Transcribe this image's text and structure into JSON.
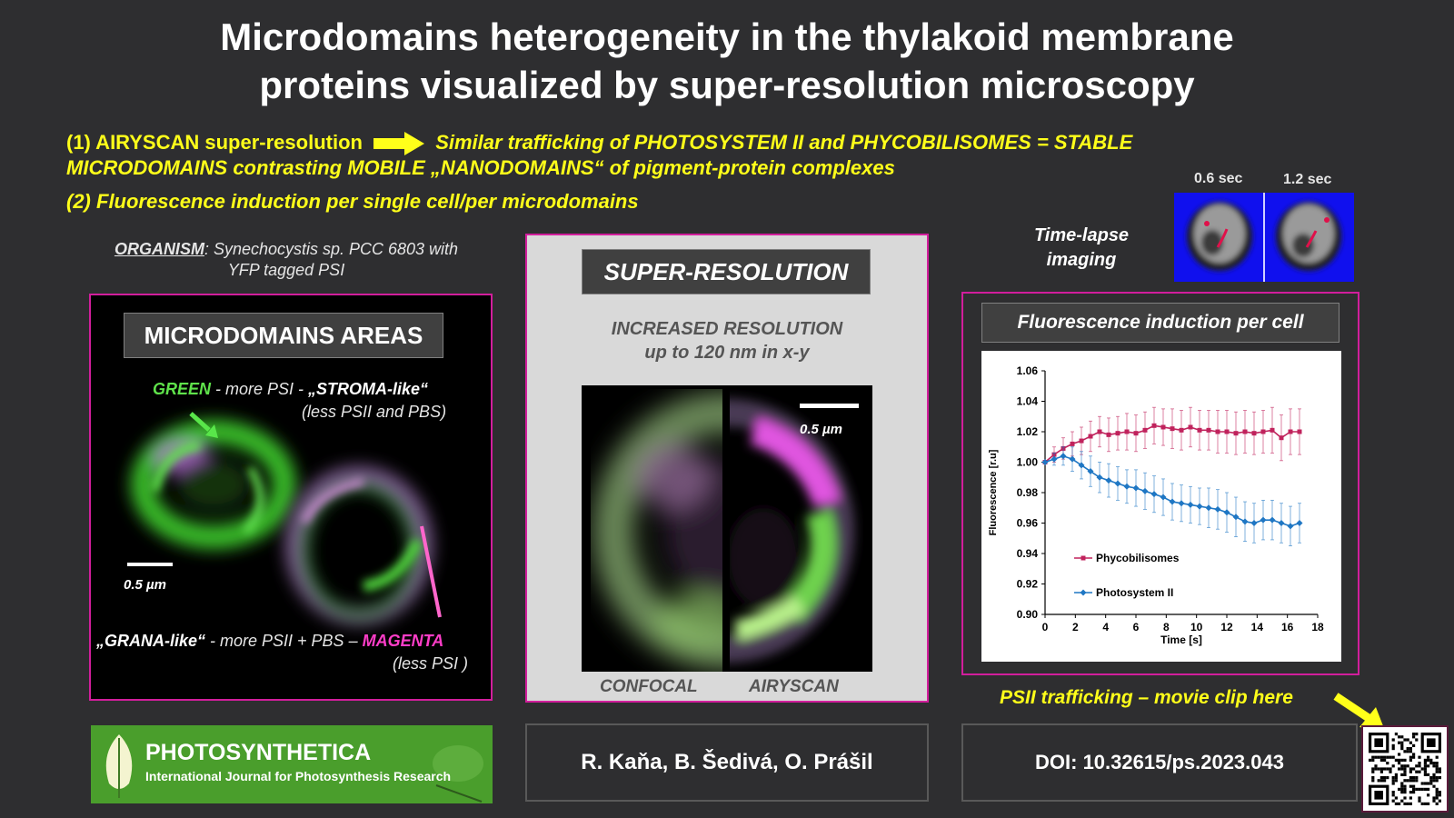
{
  "title": {
    "line1": "Microdomains heterogeneity in the thylakoid membrane",
    "line2": "proteins visualized by super-resolution microscopy"
  },
  "points": {
    "p1_lead": "(1) AIRYSCAN super-resolution",
    "p1_rest": "Similar trafficking of PHOTOSYSTEM II and PHYCOBILISOMES = STABLE",
    "p1_line2": "MICRODOMAINS contrasting MOBILE „NANODOMAINS“ of pigment-protein complexes",
    "p2": "(2) Fluorescence induction per single cell/per microdomains"
  },
  "organism": {
    "label": "ORGANISM",
    "text1": ": Synechocystis sp. PCC 6803 with",
    "text2": "YFP tagged PSI"
  },
  "left_panel": {
    "header": "MICRODOMAINS  AREAS",
    "green_word": "GREEN",
    "green_text": " - more PSI  - ",
    "stroma": "„STROMA-like“",
    "green_sub": "(less PSII and PBS)",
    "scale": "0.5 µm",
    "grana": "„GRANA-like“",
    "grana_text": " - more PSII + PBS – ",
    "magenta_word": "MAGENTA",
    "magenta_sub": "(less PSI )"
  },
  "mid_panel": {
    "header": "SUPER-RESOLUTION",
    "res1": "INCREASED RESOLUTION",
    "res2": "up to 120 nm in x-y",
    "scale": "0.5 µm",
    "cap_left": "CONFOCAL",
    "cap_right": "AIRYSCAN"
  },
  "timelapse": {
    "label1": "Time-lapse",
    "label2": "imaging",
    "t1": "0.6 sec",
    "t2": "1.2 sec"
  },
  "right_panel": {
    "header": "Fluorescence induction per cell"
  },
  "chart_data": {
    "type": "line",
    "title": "",
    "xlabel": "Time [s]",
    "ylabel": "Fluorescence [r.u]",
    "xlim": [
      0,
      18
    ],
    "ylim": [
      0.9,
      1.06
    ],
    "xticks": [
      "0",
      "2",
      "4",
      "6",
      "8",
      "10",
      "12",
      "14",
      "16",
      "18"
    ],
    "yticks": [
      "0.90",
      "0.92",
      "0.94",
      "0.96",
      "0.98",
      "1.00",
      "1.02",
      "1.04",
      "1.06"
    ],
    "x": [
      0,
      0.6,
      1.2,
      1.8,
      2.4,
      3.0,
      3.6,
      4.2,
      4.8,
      5.4,
      6.0,
      6.6,
      7.2,
      7.8,
      8.4,
      9.0,
      9.6,
      10.2,
      10.8,
      11.4,
      12.0,
      12.6,
      13.2,
      13.8,
      14.4,
      15.0,
      15.6,
      16.2,
      16.8
    ],
    "series": [
      {
        "name": "Phycobilisomes",
        "color": "#c0225c",
        "marker": "square",
        "values": [
          1.0,
          1.005,
          1.009,
          1.012,
          1.014,
          1.017,
          1.02,
          1.018,
          1.019,
          1.02,
          1.019,
          1.021,
          1.024,
          1.023,
          1.022,
          1.021,
          1.023,
          1.021,
          1.021,
          1.02,
          1.02,
          1.019,
          1.02,
          1.019,
          1.02,
          1.021,
          1.016,
          1.02,
          1.02
        ],
        "error": [
          0.0,
          0.005,
          0.007,
          0.008,
          0.009,
          0.01,
          0.01,
          0.011,
          0.011,
          0.012,
          0.012,
          0.012,
          0.012,
          0.012,
          0.013,
          0.013,
          0.013,
          0.013,
          0.013,
          0.014,
          0.014,
          0.014,
          0.014,
          0.014,
          0.014,
          0.015,
          0.015,
          0.015,
          0.015
        ]
      },
      {
        "name": "Photosystem II",
        "color": "#1f77c4",
        "marker": "diamond",
        "values": [
          1.0,
          1.002,
          1.004,
          1.002,
          0.998,
          0.994,
          0.99,
          0.988,
          0.986,
          0.984,
          0.983,
          0.981,
          0.979,
          0.977,
          0.974,
          0.973,
          0.972,
          0.971,
          0.97,
          0.969,
          0.967,
          0.964,
          0.961,
          0.96,
          0.962,
          0.962,
          0.96,
          0.958,
          0.96
        ],
        "error": [
          0.0,
          0.004,
          0.006,
          0.008,
          0.009,
          0.01,
          0.01,
          0.011,
          0.011,
          0.011,
          0.012,
          0.012,
          0.012,
          0.012,
          0.012,
          0.012,
          0.012,
          0.012,
          0.013,
          0.013,
          0.013,
          0.013,
          0.013,
          0.013,
          0.013,
          0.013,
          0.013,
          0.013,
          0.013
        ]
      }
    ],
    "legend": "bottom-left",
    "grid": false
  },
  "movie": {
    "text": "PSII trafficking  –  movie clip here"
  },
  "footer": {
    "journal": "PHOTOSYNTHETICA",
    "journal_sub": "International Journal for Photosynthesis Research",
    "authors": "R. Kaňa, B. Šedivá, O. Prášil",
    "doi": "DOI: 10.32615/ps.2023.043"
  }
}
